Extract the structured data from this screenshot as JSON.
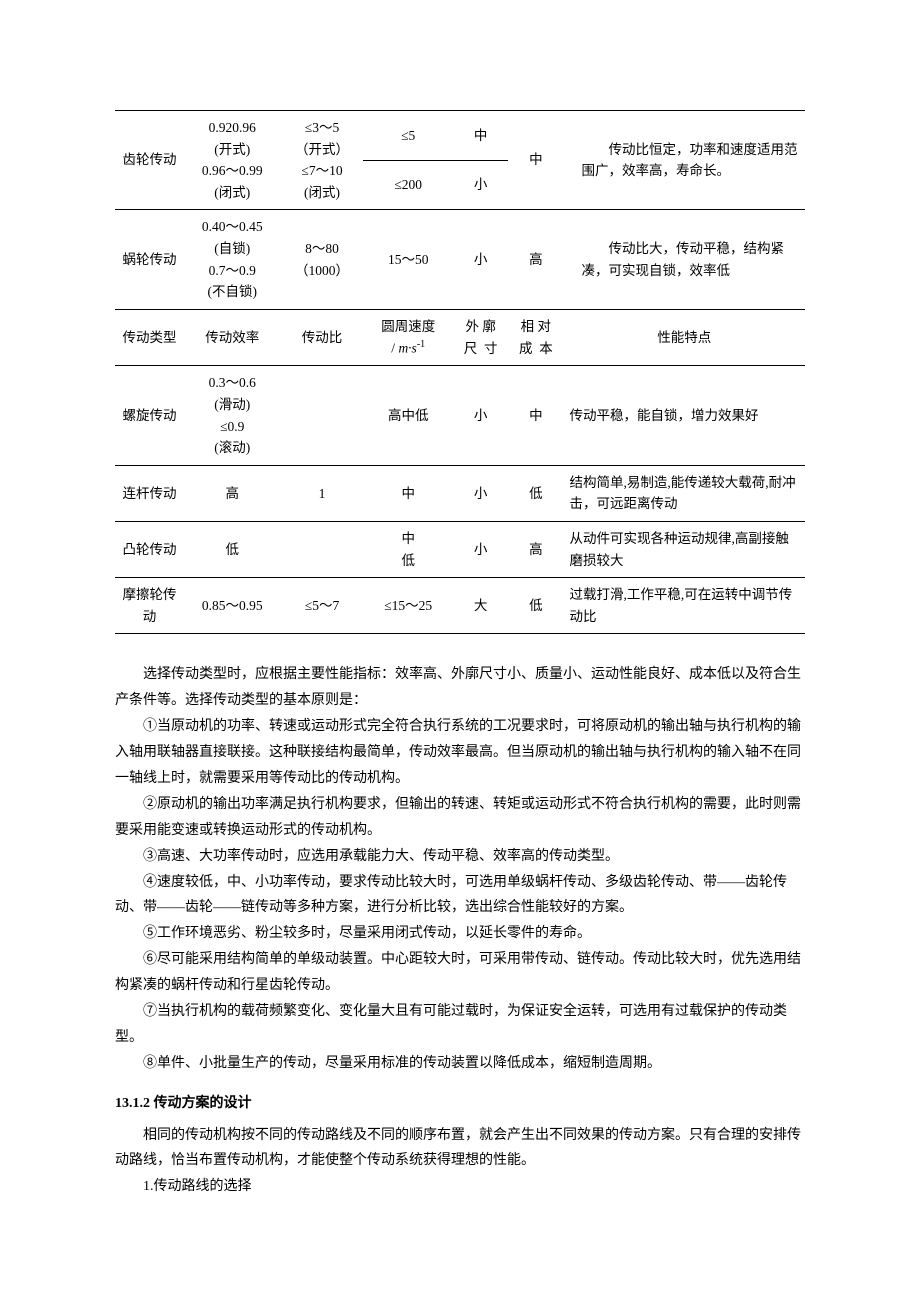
{
  "table": {
    "rows": [
      {
        "type_r": 2,
        "type": "齿轮传动",
        "eff": "0.920.96\n(开式)\n0.96～0.99\n(闭式)",
        "ratio": "≤3～5\n（开式）\n≤7～10\n(闭式)",
        "speed": "≤5",
        "sizeA": "中",
        "size_r": 1,
        "cost_r": 2,
        "cost": "中",
        "note_r": 2,
        "note": "传动比恒定，功率和速度适用范围广，效率高，寿命长。"
      },
      {
        "speed": "≤200",
        "sizeA": "小",
        "size_r": 1
      },
      {
        "type_r": 1,
        "type": "蜗轮传动",
        "eff": "0.40～0.45\n(自锁)\n0.7～0.9\n(不自锁)",
        "ratio": "8～80\n（1000）",
        "speed": "15～50",
        "sizeA": "小",
        "size_r": 1,
        "cost": "高",
        "cost_r": 1,
        "note_r": 1,
        "note": "传动比大，传动平稳，结构紧凑，可实现自锁，效率低"
      },
      {
        "header": true,
        "type_r": 1,
        "type": "传动类型",
        "eff": "传动效率",
        "ratio": "传动比",
        "speed": "圆周速度\n/ m·s⁻¹",
        "sizeA": "外 廓\n尺  寸",
        "size_r": 1,
        "cost": "相 对\n成  本",
        "cost_r": 1,
        "note_r": 1,
        "note_center": true,
        "note": "性能特点"
      },
      {
        "type_r": 1,
        "type": "螺旋传动",
        "eff": "0.3～0.6\n(滑动)\n≤0.9\n(滚动)",
        "ratio": "",
        "speed": "高中低",
        "sizeA": "小",
        "size_r": 1,
        "cost": "中",
        "cost_r": 1,
        "note_r": 1,
        "note_noindent": true,
        "note": "传动平稳，能自锁，增力效果好"
      },
      {
        "type_r": 1,
        "type": "连杆传动",
        "eff": "高",
        "ratio": "1",
        "speed": "中",
        "sizeA": "小",
        "size_r": 1,
        "cost": "低",
        "cost_r": 1,
        "note_r": 1,
        "note_noindent": true,
        "note": "结构简单,易制造,能传递较大载荷,耐冲击，可远距离传动"
      },
      {
        "type_r": 1,
        "type": "凸轮传动",
        "eff": "低",
        "ratio": "",
        "speed": "中\n低",
        "sizeA": "小",
        "size_r": 1,
        "cost": "高",
        "cost_r": 1,
        "note_r": 1,
        "note_noindent": true,
        "note": "从动件可实现各种运动规律,高副接触磨损较大"
      },
      {
        "last": true,
        "type_r": 1,
        "type": "摩擦轮传动",
        "eff": "0.85～0.95",
        "ratio": "≤5～7",
        "speed": "≤15～25",
        "sizeA": "大",
        "size_r": 1,
        "cost": "低",
        "cost_r": 1,
        "note_r": 1,
        "note_noindent": true,
        "note": "过载打滑,工作平稳,可在运转中调节传动比"
      }
    ],
    "widths": [
      "10%",
      "14%",
      "12%",
      "13%",
      "8%",
      "8%",
      "35%"
    ]
  },
  "body": {
    "p1": "选择传动类型时，应根据主要性能指标：效率高、外廓尺寸小、质量小、运动性能良好、成本低以及符合生产条件等。选择传动类型的基本原则是：",
    "p2": "①当原动机的功率、转速或运动形式完全符合执行系统的工况要求时，可将原动机的输出轴与执行机构的输入轴用联轴器直接联接。这种联接结构最简单，传动效率最高。但当原动机的输出轴与执行机构的输入轴不在同一轴线上时，就需要采用等传动比的传动机构。",
    "p3": "②原动机的输出功率满足执行机构要求，但输出的转速、转矩或运动形式不符合执行机构的需要，此时则需要采用能变速或转换运动形式的传动机构。",
    "p4": "③高速、大功率传动时，应选用承载能力大、传动平稳、效率高的传动类型。",
    "p5": "④速度较低，中、小功率传动，要求传动比较大时，可选用单级蜗杆传动、多级齿轮传动、带——齿轮传动、带——齿轮——链传动等多种方案，进行分析比较，选出综合性能较好的方案。",
    "p6": "⑤工作环境恶劣、粉尘较多时，尽量采用闭式传动，以延长零件的寿命。",
    "p7": "⑥尽可能采用结构简单的单级动装置。中心距较大时，可采用带传动、链传动。传动比较大时，优先选用结构紧凑的蜗杆传动和行星齿轮传动。",
    "p8": "⑦当执行机构的载荷频繁变化、变化量大且有可能过载时，为保证安全运转，可选用有过载保护的传动类型。",
    "p9": "⑧单件、小批量生产的传动，尽量采用标准的传动装置以降低成本，缩短制造周期。",
    "h1": "13.1.2 传动方案的设计",
    "p10": "相同的传动机构按不同的传动路线及不同的顺序布置，就会产生出不同效果的传动方案。只有合理的安排传动路线，恰当布置传动机构，才能使整个传动系统获得理想的性能。",
    "p11": "1.传动路线的选择"
  }
}
